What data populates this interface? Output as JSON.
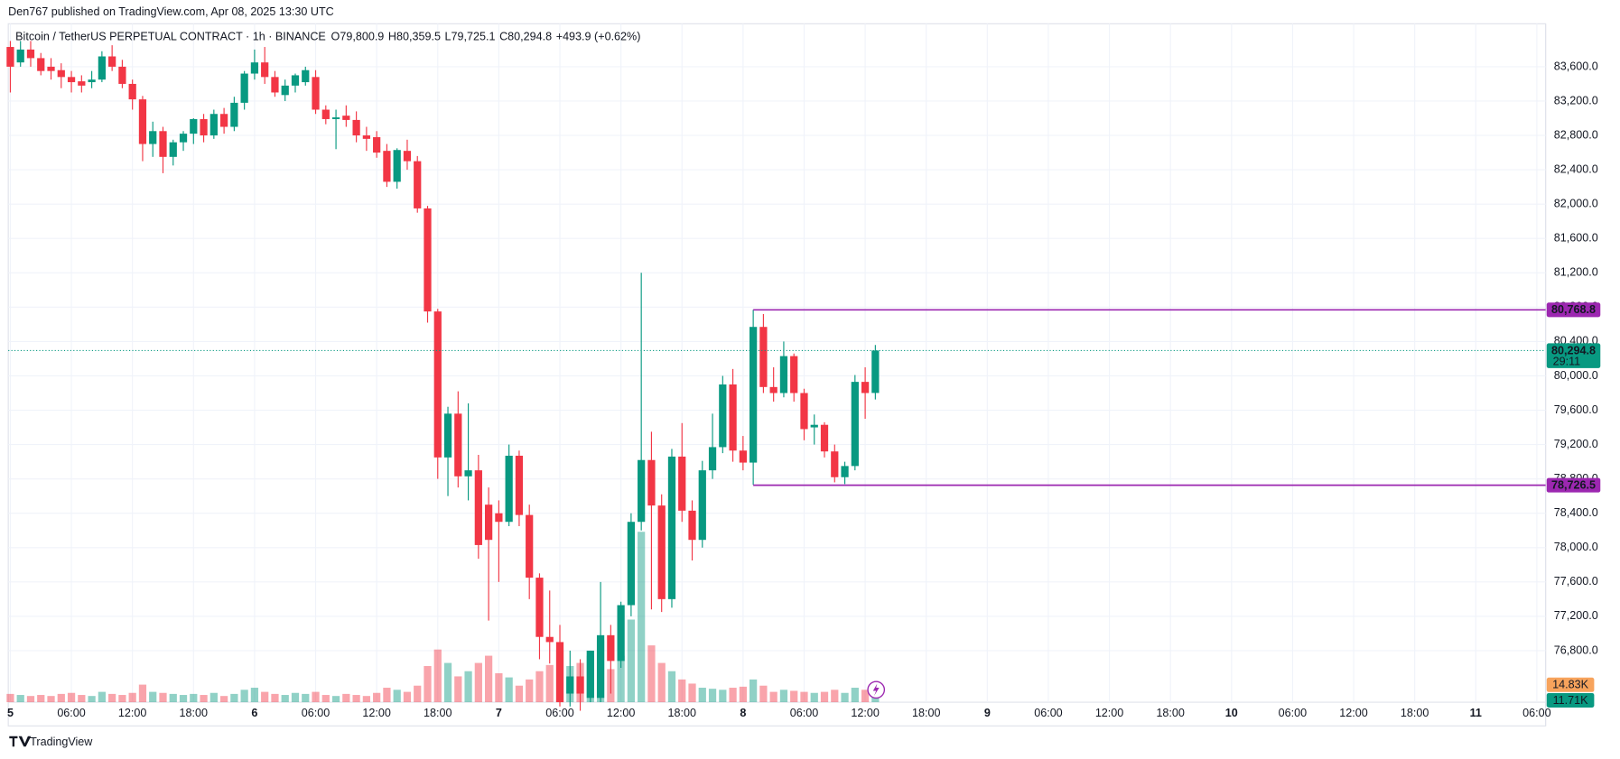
{
  "header": {
    "published": "Den767 published on TradingView.com, Apr 08, 2025 13:30 UTC",
    "brand": "TradingView"
  },
  "chart_data": {
    "type": "candlestick",
    "title": "Bitcoin / TetherUS PERPETUAL CONTRACT · 1h · BINANCE",
    "ohlc_labels": [
      {
        "key": "O",
        "value": "79,800.9"
      },
      {
        "key": "H",
        "value": "80,359.5"
      },
      {
        "key": "L",
        "value": "79,725.1"
      },
      {
        "key": "C",
        "value": "80,294.8"
      }
    ],
    "change_label": "+493.9 (+0.62%)",
    "up_color": "#089981",
    "down_color": "#f23645",
    "open": [
      83830,
      83650,
      83800,
      83700,
      83600,
      83560,
      83480,
      83430,
      83420,
      83450,
      83720,
      83600,
      83400,
      83220,
      82700,
      82850,
      82550,
      82720,
      82820,
      82990,
      82800,
      83050,
      82900,
      83180,
      83520,
      83650,
      83480,
      83270,
      83380,
      83420,
      83480,
      83100,
      82990,
      83030,
      82980,
      82800,
      82780,
      82620,
      82260,
      82620,
      82500,
      81950,
      80750,
      79050,
      79560,
      78830,
      78900,
      78500,
      78400,
      78300,
      79070,
      78380,
      77650,
      76960,
      76900,
      76300,
      76500,
      76250,
      76250,
      76980,
      76680,
      77330,
      78300,
      79020,
      78490,
      77400,
      79060,
      78430,
      78090,
      78900,
      79170,
      79900,
      79130,
      78990,
      80570,
      79870,
      79800,
      80230,
      79800,
      79400,
      79430,
      79120,
      78820,
      78950,
      79930,
      79800.9
    ],
    "high": [
      83900,
      83900,
      83900,
      83760,
      83700,
      83640,
      83550,
      83500,
      83550,
      83780,
      83850,
      83680,
      83450,
      83260,
      82960,
      82900,
      82750,
      82850,
      83000,
      83050,
      83100,
      83120,
      83250,
      83550,
      83800,
      83830,
      83550,
      83450,
      83520,
      83600,
      83560,
      83150,
      83100,
      83150,
      83080,
      82900,
      82850,
      82700,
      82650,
      82750,
      82560,
      81980,
      80780,
      79640,
      79820,
      79680,
      79080,
      78700,
      78550,
      79200,
      79130,
      78500,
      77700,
      77500,
      77100,
      76800,
      76700,
      76800,
      77600,
      77100,
      77370,
      78400,
      81200,
      79350,
      78620,
      79150,
      79450,
      78550,
      79010,
      79560,
      80000,
      80080,
      79300,
      80770,
      80720,
      80100,
      80400,
      80260,
      79850,
      79550,
      79460,
      79200,
      79000,
      80010,
      80100,
      80359.5
    ],
    "low": [
      83300,
      83600,
      83600,
      83500,
      83450,
      83350,
      83300,
      83300,
      83350,
      83420,
      83550,
      83350,
      83100,
      82500,
      82550,
      82360,
      82450,
      82620,
      82700,
      82720,
      82760,
      82820,
      82850,
      83100,
      83450,
      83400,
      83250,
      83200,
      83300,
      83380,
      83050,
      82930,
      82640,
      82900,
      82720,
      82620,
      82540,
      82200,
      82180,
      82400,
      81900,
      80620,
      78800,
      78600,
      78700,
      78550,
      77870,
      77150,
      77600,
      78250,
      78250,
      77400,
      76700,
      76650,
      76150,
      76150,
      76100,
      76200,
      76200,
      76300,
      76600,
      77200,
      78200,
      77280,
      77250,
      77300,
      78300,
      77850,
      78000,
      78800,
      79100,
      79000,
      78900,
      78730,
      79800,
      79700,
      79750,
      79700,
      79250,
      79200,
      79050,
      78760,
      78740,
      78900,
      79500,
      79725.1
    ],
    "close": [
      83600,
      83800,
      83700,
      83550,
      83550,
      83480,
      83420,
      83380,
      83450,
      83720,
      83600,
      83400,
      83220,
      82700,
      82850,
      82550,
      82720,
      82820,
      82990,
      82800,
      83050,
      82900,
      83180,
      83520,
      83650,
      83480,
      83300,
      83380,
      83500,
      83560,
      83100,
      82990,
      83010,
      82980,
      82800,
      82760,
      82600,
      82260,
      82630,
      82500,
      81950,
      80750,
      79050,
      79560,
      78830,
      78900,
      78030,
      78090,
      78300,
      79070,
      78380,
      77650,
      76960,
      76900,
      76200,
      76500,
      76300,
      76800,
      76980,
      76680,
      77330,
      78300,
      79020,
      78490,
      77400,
      79060,
      78430,
      78090,
      78900,
      79170,
      79900,
      79130,
      78990,
      80570,
      79870,
      79800,
      80230,
      79800,
      79380,
      79430,
      79120,
      78820,
      78950,
      79930,
      79800,
      80294.8
    ],
    "close_label": "80,294.8",
    "countdown": "29:11",
    "volume": [
      8,
      7,
      6,
      7,
      6,
      8,
      9,
      7,
      6,
      10,
      8,
      7,
      9,
      17,
      10,
      9,
      8,
      7,
      8,
      7,
      9,
      6,
      8,
      12,
      14,
      10,
      8,
      7,
      9,
      8,
      10,
      7,
      6,
      8,
      7,
      6,
      9,
      14,
      12,
      10,
      16,
      35,
      51,
      38,
      25,
      30,
      38,
      45,
      28,
      24,
      16,
      22,
      30,
      36,
      50,
      35,
      38,
      45,
      60,
      32,
      45,
      80,
      165,
      55,
      38,
      30,
      22,
      18,
      14,
      13,
      12,
      14,
      15,
      22,
      16,
      10,
      12,
      11,
      10,
      9,
      10,
      12,
      9,
      14,
      12,
      14.83
    ],
    "volume_label": "14.83K",
    "volume_ma": 11.71,
    "volume_ma_label": "11.71K",
    "levels": [
      {
        "value": 80768.8,
        "label": "80,768.8"
      },
      {
        "value": 78726.5,
        "label": "78,726.5"
      }
    ],
    "levels_color": "#9c27b0",
    "ylim": [
      76200,
      84100
    ],
    "yticks": [
      {
        "value": 76800,
        "label": "76,800.0"
      },
      {
        "value": 77200,
        "label": "77,200.0"
      },
      {
        "value": 77600,
        "label": "77,600.0"
      },
      {
        "value": 78000,
        "label": "78,000.0"
      },
      {
        "value": 78400,
        "label": "78,400.0"
      },
      {
        "value": 78800,
        "label": "78,800.0"
      },
      {
        "value": 79200,
        "label": "79,200.0"
      },
      {
        "value": 79600,
        "label": "79,600.0"
      },
      {
        "value": 80000,
        "label": "80,000.0"
      },
      {
        "value": 80400,
        "label": "80,400.0"
      },
      {
        "value": 80800,
        "label": "80,800.0"
      },
      {
        "value": 81200,
        "label": "81,200.0"
      },
      {
        "value": 81600,
        "label": "81,600.0"
      },
      {
        "value": 82000,
        "label": "82,000.0"
      },
      {
        "value": 82400,
        "label": "82,400.0"
      },
      {
        "value": 82800,
        "label": "82,800.0"
      },
      {
        "value": 83200,
        "label": "83,200.0"
      },
      {
        "value": 83600,
        "label": "83,600.0"
      }
    ],
    "xtick_labels": [
      "5",
      "06:00",
      "12:00",
      "18:00",
      "6",
      "06:00",
      "12:00",
      "18:00",
      "7",
      "06:00",
      "12:00",
      "18:00",
      "8",
      "06:00",
      "12:00",
      "18:00",
      "9",
      "06:00",
      "12:00",
      "18:00",
      "10",
      "06:00",
      "12:00",
      "18:00",
      "11",
      "06:00"
    ],
    "grid": true
  }
}
